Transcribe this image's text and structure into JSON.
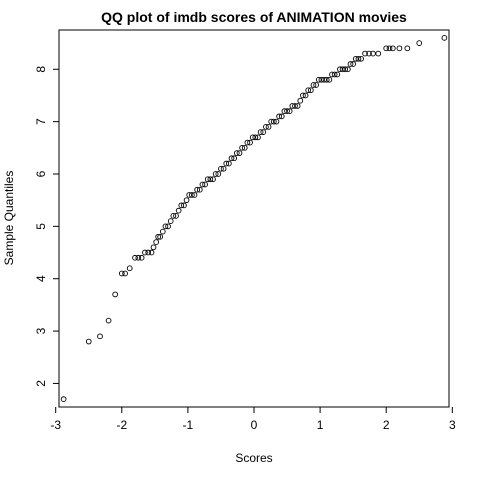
{
  "chart_data": {
    "type": "scatter",
    "title": "QQ plot of imdb scores of ANIMATION movies",
    "xlabel": "Scores",
    "ylabel": "Sample Quantiles",
    "xlim": [
      -2.95,
      2.95
    ],
    "ylim": [
      1.55,
      8.75
    ],
    "xticks": [
      "-3",
      "-2",
      "-1",
      "0",
      "1",
      "2",
      "3"
    ],
    "yticks": [
      "2",
      "3",
      "4",
      "5",
      "6",
      "7",
      "8"
    ],
    "grid": false,
    "points": [
      [
        -2.88,
        1.7
      ],
      [
        -2.5,
        2.8
      ],
      [
        -2.33,
        2.9
      ],
      [
        -2.2,
        3.2
      ],
      [
        -2.1,
        3.7
      ],
      [
        -2.0,
        4.1
      ],
      [
        -1.95,
        4.1
      ],
      [
        -1.88,
        4.2
      ],
      [
        -1.8,
        4.4
      ],
      [
        -1.75,
        4.4
      ],
      [
        -1.7,
        4.4
      ],
      [
        -1.65,
        4.5
      ],
      [
        -1.6,
        4.5
      ],
      [
        -1.55,
        4.5
      ],
      [
        -1.52,
        4.6
      ],
      [
        -1.48,
        4.7
      ],
      [
        -1.45,
        4.8
      ],
      [
        -1.42,
        4.8
      ],
      [
        -1.38,
        4.9
      ],
      [
        -1.34,
        5.0
      ],
      [
        -1.3,
        5.0
      ],
      [
        -1.26,
        5.1
      ],
      [
        -1.22,
        5.2
      ],
      [
        -1.18,
        5.2
      ],
      [
        -1.14,
        5.3
      ],
      [
        -1.1,
        5.4
      ],
      [
        -1.06,
        5.4
      ],
      [
        -1.02,
        5.5
      ],
      [
        -0.98,
        5.6
      ],
      [
        -0.94,
        5.6
      ],
      [
        -0.9,
        5.6
      ],
      [
        -0.86,
        5.7
      ],
      [
        -0.82,
        5.7
      ],
      [
        -0.78,
        5.8
      ],
      [
        -0.74,
        5.8
      ],
      [
        -0.7,
        5.9
      ],
      [
        -0.66,
        5.9
      ],
      [
        -0.62,
        5.9
      ],
      [
        -0.58,
        6.0
      ],
      [
        -0.54,
        6.0
      ],
      [
        -0.5,
        6.1
      ],
      [
        -0.46,
        6.1
      ],
      [
        -0.42,
        6.2
      ],
      [
        -0.38,
        6.2
      ],
      [
        -0.34,
        6.3
      ],
      [
        -0.3,
        6.3
      ],
      [
        -0.26,
        6.4
      ],
      [
        -0.22,
        6.4
      ],
      [
        -0.18,
        6.5
      ],
      [
        -0.14,
        6.5
      ],
      [
        -0.1,
        6.6
      ],
      [
        -0.06,
        6.6
      ],
      [
        -0.02,
        6.7
      ],
      [
        0.02,
        6.7
      ],
      [
        0.06,
        6.7
      ],
      [
        0.1,
        6.8
      ],
      [
        0.14,
        6.8
      ],
      [
        0.18,
        6.9
      ],
      [
        0.22,
        6.9
      ],
      [
        0.26,
        7.0
      ],
      [
        0.3,
        7.0
      ],
      [
        0.34,
        7.0
      ],
      [
        0.38,
        7.1
      ],
      [
        0.42,
        7.1
      ],
      [
        0.46,
        7.2
      ],
      [
        0.5,
        7.2
      ],
      [
        0.54,
        7.2
      ],
      [
        0.58,
        7.3
      ],
      [
        0.62,
        7.3
      ],
      [
        0.66,
        7.3
      ],
      [
        0.7,
        7.4
      ],
      [
        0.74,
        7.5
      ],
      [
        0.78,
        7.5
      ],
      [
        0.82,
        7.6
      ],
      [
        0.86,
        7.6
      ],
      [
        0.9,
        7.7
      ],
      [
        0.94,
        7.7
      ],
      [
        0.98,
        7.8
      ],
      [
        1.02,
        7.8
      ],
      [
        1.06,
        7.8
      ],
      [
        1.1,
        7.8
      ],
      [
        1.14,
        7.8
      ],
      [
        1.18,
        7.9
      ],
      [
        1.22,
        7.9
      ],
      [
        1.26,
        7.9
      ],
      [
        1.3,
        8.0
      ],
      [
        1.34,
        8.0
      ],
      [
        1.38,
        8.0
      ],
      [
        1.42,
        8.0
      ],
      [
        1.46,
        8.1
      ],
      [
        1.5,
        8.1
      ],
      [
        1.54,
        8.2
      ],
      [
        1.58,
        8.2
      ],
      [
        1.62,
        8.2
      ],
      [
        1.68,
        8.3
      ],
      [
        1.74,
        8.3
      ],
      [
        1.8,
        8.3
      ],
      [
        1.88,
        8.3
      ],
      [
        2.0,
        8.4
      ],
      [
        2.05,
        8.4
      ],
      [
        2.1,
        8.4
      ],
      [
        2.2,
        8.4
      ],
      [
        2.32,
        8.4
      ],
      [
        2.5,
        8.5
      ],
      [
        2.88,
        8.6
      ]
    ]
  }
}
